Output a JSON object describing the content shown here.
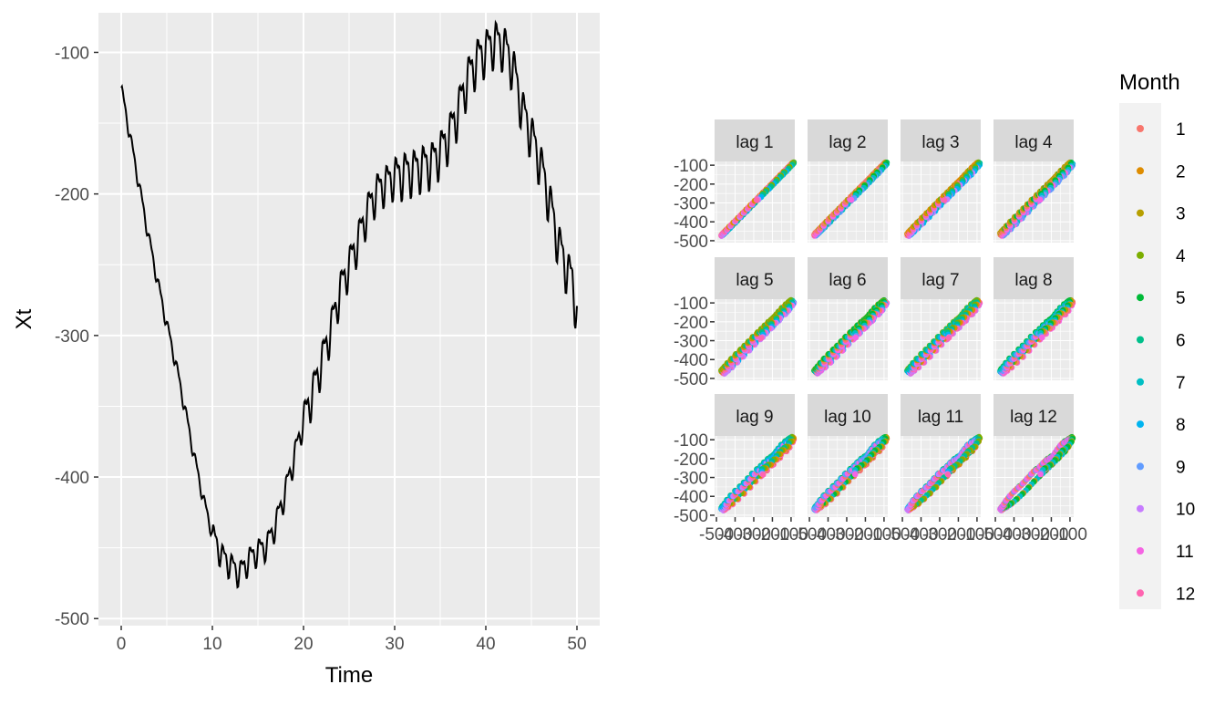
{
  "chart_data": [
    {
      "type": "line",
      "title": "",
      "xlabel": "Time",
      "ylabel": "Xt",
      "xlim": [
        -2.5,
        52.5
      ],
      "ylim": [
        -505,
        -72
      ],
      "xticks": [
        0,
        10,
        20,
        30,
        40,
        50
      ],
      "xtick_labels": [
        "0",
        "10",
        "20",
        "30",
        "40",
        "50"
      ],
      "yticks": [
        -500,
        -400,
        -300,
        -200,
        -100
      ],
      "ytick_labels": [
        "-500",
        "-400",
        "-300",
        "-200",
        "-100"
      ],
      "grid": true,
      "series": [
        {
          "color": "#000000",
          "x": [
            0,
            1,
            2,
            3,
            4,
            5,
            6,
            7,
            8,
            9,
            10,
            11,
            12,
            13,
            14,
            15,
            16,
            17,
            18,
            19,
            20,
            21,
            22,
            23,
            24,
            25,
            26,
            27,
            28,
            29,
            30,
            31,
            32,
            33,
            34,
            35,
            36,
            37,
            38,
            39,
            40,
            41,
            42,
            43,
            44,
            45,
            46,
            47,
            48,
            49,
            49.5,
            50
          ],
          "y": [
            -125,
            -160,
            -195,
            -230,
            -262,
            -292,
            -320,
            -352,
            -385,
            -415,
            -440,
            -455,
            -462,
            -468,
            -458,
            -452,
            -448,
            -432,
            -410,
            -385,
            -360,
            -340,
            -318,
            -295,
            -268,
            -250,
            -232,
            -212,
            -198,
            -192,
            -188,
            -185,
            -183,
            -180,
            -178,
            -170,
            -158,
            -140,
            -118,
            -105,
            -98,
            -92,
            -95,
            -110,
            -140,
            -158,
            -178,
            -205,
            -235,
            -255,
            -260,
            -285
          ]
        }
      ]
    },
    {
      "type": "scatter",
      "title": "",
      "xlabel": "",
      "ylabel": "",
      "facets": [
        "lag 1",
        "lag 2",
        "lag 3",
        "lag 4",
        "lag 5",
        "lag 6",
        "lag 7",
        "lag 8",
        "lag 9",
        "lag 10",
        "lag 11",
        "lag 12"
      ],
      "facet_layout": [
        3,
        4
      ],
      "xlim": [
        -510,
        -80
      ],
      "ylim": [
        -510,
        -80
      ],
      "xticks": [
        -500,
        -400,
        -300,
        -200,
        -100
      ],
      "xtick_labels": [
        "-500",
        "-400",
        "-300",
        "-200",
        "-100"
      ],
      "yticks": [
        -500,
        -400,
        -300,
        -200,
        -100
      ],
      "ytick_labels": [
        "-500",
        "-400",
        "-300",
        "-200",
        "-100"
      ],
      "grid": true,
      "legend": {
        "title": "Month",
        "placement": "right",
        "labels": [
          "1",
          "2",
          "3",
          "4",
          "5",
          "6",
          "7",
          "8",
          "9",
          "10",
          "11",
          "12"
        ],
        "colors": [
          "#F8766D",
          "#DE8C00",
          "#B79F00",
          "#7CAE00",
          "#00BA38",
          "#00C08B",
          "#00BFC4",
          "#00B4F0",
          "#619CFF",
          "#C77CFF",
          "#F564E3",
          "#FF64B0"
        ]
      }
    }
  ]
}
